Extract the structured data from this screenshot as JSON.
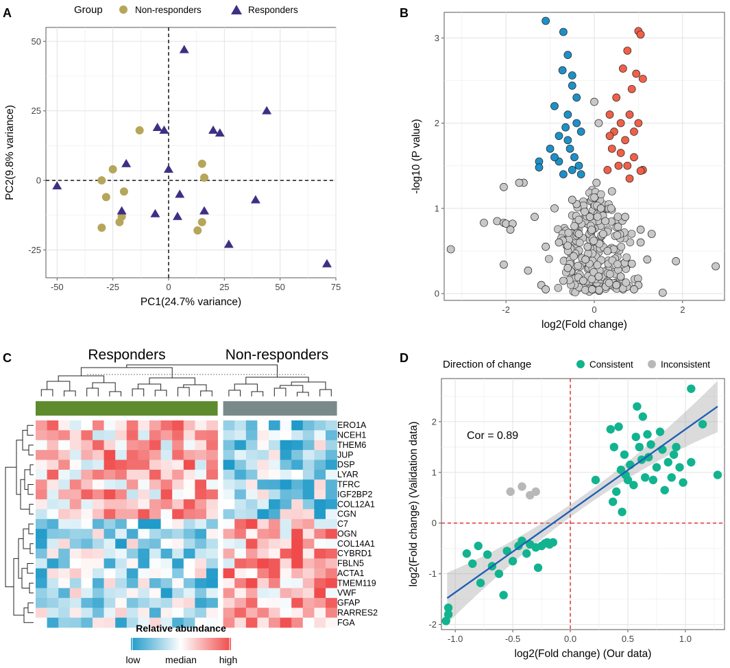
{
  "chart_data": [
    {
      "panel": "A",
      "type": "scatter",
      "legend_title": "Group",
      "legend_position": "top",
      "xlabel": "PC1(24.7% variance)",
      "ylabel": "PC2(9.8% variance)",
      "xlim": [
        -55,
        75
      ],
      "ylim": [
        -35,
        55
      ],
      "xticks": [
        -50,
        -25,
        0,
        25,
        50,
        75
      ],
      "yticks": [
        -25,
        0,
        25,
        50
      ],
      "reference_lines": {
        "x": 0,
        "y": 0,
        "style": "dashed"
      },
      "colors": {
        "Non-responders": "#b5a65a",
        "Responders": "#3e2f85"
      },
      "series": [
        {
          "name": "Non-responders",
          "marker": "circle",
          "points": [
            [
              -13,
              18
            ],
            [
              -25,
              4
            ],
            [
              -30,
              0
            ],
            [
              -28,
              -6
            ],
            [
              -20,
              -4
            ],
            [
              -21,
              -13
            ],
            [
              -22,
              -15
            ],
            [
              -30,
              -17
            ],
            [
              15,
              6
            ],
            [
              16,
              1
            ],
            [
              15,
              -15
            ],
            [
              13,
              -18
            ]
          ]
        },
        {
          "name": "Responders",
          "marker": "triangle",
          "points": [
            [
              7,
              47
            ],
            [
              -5,
              19
            ],
            [
              -2,
              18
            ],
            [
              20,
              18
            ],
            [
              23,
              17
            ],
            [
              44,
              25
            ],
            [
              -19,
              6
            ],
            [
              0,
              4
            ],
            [
              -50,
              -2
            ],
            [
              5,
              -5
            ],
            [
              39,
              -7
            ],
            [
              -21,
              -11
            ],
            [
              -6,
              -12
            ],
            [
              4,
              -13
            ],
            [
              16,
              -11
            ],
            [
              27,
              -23
            ],
            [
              71,
              -30
            ]
          ]
        }
      ]
    },
    {
      "panel": "B",
      "type": "scatter",
      "subtype": "volcano",
      "xlabel": "log2(Fold change)",
      "ylabel": "-log10 (P value)",
      "xlim": [
        -3.4,
        2.95
      ],
      "ylim": [
        -0.08,
        3.3
      ],
      "xticks": [
        -2,
        0,
        2
      ],
      "yticks": [
        0,
        1,
        2,
        3
      ],
      "colors": {
        "down": "#1e90c8",
        "up": "#f06048",
        "ns": "#c8c8c8"
      },
      "series": [
        {
          "name": "down",
          "points": [
            [
              -1.1,
              3.2
            ],
            [
              -0.7,
              3.07
            ],
            [
              -0.72,
              2.62
            ],
            [
              -0.6,
              2.8
            ],
            [
              -0.5,
              2.56
            ],
            [
              -0.9,
              2.2
            ],
            [
              -0.5,
              2.44
            ],
            [
              -1.25,
              1.55
            ],
            [
              -1.25,
              1.48
            ],
            [
              -0.8,
              1.55
            ],
            [
              -1,
              1.7
            ],
            [
              -0.6,
              1.8
            ],
            [
              -0.3,
              1.9
            ],
            [
              -0.4,
              2.3
            ],
            [
              -0.7,
              1.4
            ],
            [
              -0.9,
              1.6
            ],
            [
              -0.55,
              1.7
            ],
            [
              -0.45,
              1.6
            ],
            [
              -0.35,
              1.5
            ],
            [
              -0.6,
              2.1
            ],
            [
              -0.8,
              1.85
            ],
            [
              -0.3,
              1.4
            ],
            [
              -0.5,
              1.45
            ],
            [
              -0.65,
              1.95
            ],
            [
              -0.4,
              2.0
            ]
          ]
        },
        {
          "name": "up",
          "points": [
            [
              1,
              3.08
            ],
            [
              1.05,
              3.04
            ],
            [
              0.75,
              2.85
            ],
            [
              0.65,
              2.64
            ],
            [
              0.95,
              2.58
            ],
            [
              1.1,
              2.52
            ],
            [
              0.5,
              2.3
            ],
            [
              0.85,
              2.4
            ],
            [
              0.35,
              2.1
            ],
            [
              0.6,
              2.0
            ],
            [
              0.8,
              2.1
            ],
            [
              1.1,
              1.45
            ],
            [
              1.05,
              1.44
            ],
            [
              0.3,
              1.45
            ],
            [
              0.4,
              1.7
            ],
            [
              0.7,
              1.8
            ],
            [
              0.9,
              1.6
            ],
            [
              0.55,
              1.5
            ],
            [
              0.45,
              1.9
            ],
            [
              0.75,
              1.5
            ],
            [
              1,
              2.0
            ],
            [
              0.9,
              1.9
            ],
            [
              0.6,
              1.65
            ],
            [
              0.35,
              1.85
            ],
            [
              0.8,
              1.35
            ]
          ]
        },
        {
          "name": "ns",
          "points": [
            [
              -3.25,
              0.52
            ],
            [
              -2.5,
              0.83
            ],
            [
              -2.2,
              0.85
            ],
            [
              -2.05,
              0.83
            ],
            [
              -2,
              0.82
            ],
            [
              -1.85,
              0.82
            ],
            [
              -1.6,
              1.3
            ],
            [
              -1.7,
              1.3
            ],
            [
              -2.05,
              1.25
            ],
            [
              -1.35,
              0.9
            ],
            [
              -1.9,
              0.75
            ],
            [
              1.05,
              0.75
            ],
            [
              1.3,
              0.7
            ],
            [
              2.75,
              0.32
            ],
            [
              1.85,
              0.38
            ],
            [
              1.55,
              0.01
            ],
            [
              -2.05,
              0.34
            ],
            [
              -1.5,
              0.27
            ],
            [
              1.2,
              0.4
            ],
            [
              1.05,
              0.6
            ],
            [
              -1.2,
              0.1
            ],
            [
              -1.1,
              0.05
            ],
            [
              1.0,
              0.1
            ],
            [
              0.9,
              0.05
            ],
            [
              0.5,
              0.1
            ],
            [
              -0.4,
              1.05
            ],
            [
              -0.2,
              0.4
            ],
            [
              0.2,
              0.7
            ],
            [
              0.1,
              0.2
            ],
            [
              -0.1,
              0.9
            ],
            [
              -0.6,
              0.3
            ],
            [
              0.4,
              1.2
            ],
            [
              -0.5,
              1.1
            ],
            [
              0.3,
              0.5
            ],
            [
              -0.25,
              0.15
            ],
            [
              0.15,
              1.0
            ],
            [
              -0.8,
              0.6
            ],
            [
              0.7,
              0.9
            ],
            [
              -0.05,
              0.05
            ],
            [
              0.6,
              0.2
            ],
            [
              -0.9,
              1.0
            ],
            [
              0.85,
              0.35
            ],
            [
              -0.35,
              0.7
            ],
            [
              0.05,
              1.3
            ],
            [
              -0.15,
              0.55
            ],
            [
              0.25,
              0.85
            ],
            [
              0,
              2.25
            ],
            [
              0.1,
              2.0
            ],
            [
              -1.1,
              0.55
            ],
            [
              -0.7,
              0.15
            ]
          ]
        }
      ]
    },
    {
      "panel": "C",
      "type": "heatmap",
      "group_labels": [
        "Responders",
        "Non-responders"
      ],
      "group_colors": [
        "#5e8b2e",
        "#7a8a8a"
      ],
      "n_columns": [
        16,
        10
      ],
      "rows": [
        "ERO1A",
        "NCEH1",
        "THEM6",
        "JUP",
        "DSP",
        "LYAR",
        "TFRC",
        "IGF2BP2",
        "COL12A1",
        "CGN",
        "C7",
        "OGN",
        "COL14A1",
        "CYBRD1",
        "FBLN5",
        "ACTA1",
        "TMEM119",
        "VWF",
        "GFAP",
        "RARRES2",
        "FGA"
      ],
      "colorbar": {
        "title": "Relative abundance",
        "labels": [
          "low",
          "median",
          "high"
        ],
        "colors": [
          "#1f9ac9",
          "#ffffff",
          "#f04a4a"
        ]
      }
    },
    {
      "panel": "D",
      "type": "scatter",
      "legend_title": "Direction of change",
      "legend_position": "top",
      "xlabel": "log2(Fold change) (Our data)",
      "ylabel": "log2(Fold change) (Validation data)",
      "xlim": [
        -1.12,
        1.34
      ],
      "ylim": [
        -2.1,
        2.85
      ],
      "xticks": [
        -1.0,
        -0.5,
        0.0,
        0.5,
        1.0
      ],
      "yticks": [
        -2,
        -1,
        0,
        1,
        2
      ],
      "annotation": "Cor = 0.89",
      "reference_lines": {
        "x": 0,
        "y": 0,
        "color": "#e0242a",
        "style": "dashed"
      },
      "regression": {
        "x": [
          -1.07,
          1.28
        ],
        "y": [
          -1.48,
          2.3
        ],
        "color": "#1f5fb5"
      },
      "colors": {
        "Consistent": "#12b38f",
        "Inconsistent": "#b8b8b8"
      },
      "series": [
        {
          "name": "Consistent",
          "points": [
            [
              -1.08,
              -1.93
            ],
            [
              -1.06,
              -1.8
            ],
            [
              -1.06,
              -1.67
            ],
            [
              -0.9,
              -0.6
            ],
            [
              -0.85,
              -0.8
            ],
            [
              -0.8,
              -0.45
            ],
            [
              -0.78,
              -1.18
            ],
            [
              -0.72,
              -0.62
            ],
            [
              -0.68,
              -0.85
            ],
            [
              -0.62,
              -1.0
            ],
            [
              -0.58,
              -1.42
            ],
            [
              -0.55,
              -0.55
            ],
            [
              -0.5,
              -0.75
            ],
            [
              -0.45,
              -0.45
            ],
            [
              -0.42,
              -0.35
            ],
            [
              -0.38,
              -0.6
            ],
            [
              -0.35,
              -0.42
            ],
            [
              -0.3,
              -0.48
            ],
            [
              -0.28,
              -0.88
            ],
            [
              -0.25,
              -0.45
            ],
            [
              -0.22,
              -0.4
            ],
            [
              -0.2,
              -0.38
            ],
            [
              -0.18,
              -0.42
            ],
            [
              -0.15,
              -0.38
            ],
            [
              0.22,
              0.85
            ],
            [
              0.35,
              1.85
            ],
            [
              0.37,
              0.42
            ],
            [
              0.38,
              1.5
            ],
            [
              0.4,
              0.62
            ],
            [
              0.42,
              1.9
            ],
            [
              0.44,
              1.05
            ],
            [
              0.45,
              0.22
            ],
            [
              0.47,
              1.35
            ],
            [
              0.48,
              0.95
            ],
            [
              0.5,
              0.85
            ],
            [
              0.52,
              1.15
            ],
            [
              0.55,
              0.75
            ],
            [
              0.57,
              1.7
            ],
            [
              0.58,
              2.3
            ],
            [
              0.6,
              1.5
            ],
            [
              0.62,
              1.25
            ],
            [
              0.63,
              2.1
            ],
            [
              0.65,
              0.9
            ],
            [
              0.67,
              1.75
            ],
            [
              0.68,
              1.3
            ],
            [
              0.7,
              1.55
            ],
            [
              0.72,
              0.85
            ],
            [
              0.75,
              1.1
            ],
            [
              0.78,
              1.8
            ],
            [
              0.8,
              1.45
            ],
            [
              0.82,
              0.65
            ],
            [
              0.85,
              1.2
            ],
            [
              0.88,
              0.9
            ],
            [
              0.9,
              1.35
            ],
            [
              0.92,
              1.5
            ],
            [
              0.95,
              1.1
            ],
            [
              0.98,
              0.8
            ],
            [
              1.05,
              2.65
            ],
            [
              1.05,
              1.2
            ],
            [
              1.15,
              1.95
            ],
            [
              1.28,
              0.95
            ]
          ]
        },
        {
          "name": "Inconsistent",
          "points": [
            [
              -0.52,
              0.62
            ],
            [
              -0.42,
              0.72
            ],
            [
              -0.35,
              0.55
            ],
            [
              -0.3,
              0.62
            ]
          ]
        }
      ]
    }
  ]
}
